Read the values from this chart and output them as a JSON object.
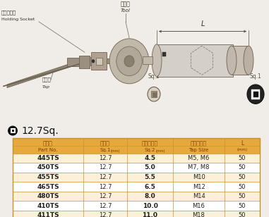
{
  "bg_color": "#f2c97e",
  "title_text": "12.7Sq.",
  "header_row1": [
    "品　番",
    "差込角",
    "四角部寸法",
    "適用タップ",
    "L"
  ],
  "header_row2_a": [
    "Part No.",
    "Sq.1",
    "Sq.2",
    "Tap Size",
    ""
  ],
  "header_row2_b": [
    "",
    "(mm)",
    "(mm)",
    "",
    "(mm)"
  ],
  "rows": [
    [
      "445TS",
      "12.7",
      "4.5",
      "M5, M6",
      "50"
    ],
    [
      "450TS",
      "12.7",
      "5.0",
      "M7, M8",
      "50"
    ],
    [
      "455TS",
      "12.7",
      "5.5",
      "M10",
      "50"
    ],
    [
      "465TS",
      "12.7",
      "6.5",
      "M12",
      "50"
    ],
    [
      "480TS",
      "12.7",
      "8.0",
      "M14",
      "50"
    ],
    [
      "410TS",
      "12.7",
      "10.0",
      "M16",
      "50"
    ],
    [
      "411TS",
      "12.7",
      "11.0",
      "M18",
      "50"
    ]
  ],
  "row_bold_col2": [
    true,
    true,
    true,
    false,
    true,
    true,
    true
  ],
  "header_bg": "#e8a93c",
  "row_bg_odd": "#fdf0d8",
  "row_bg_even": "#ffffff",
  "border_color": "#c8922a",
  "text_color": "#222222",
  "header_text_color": "#7a3a00",
  "page_bg": "#f0ede8",
  "diagram_bg": "#f2c97e",
  "tool_color": "#a09070",
  "tool_edge": "#706050",
  "label_color": "#333333"
}
